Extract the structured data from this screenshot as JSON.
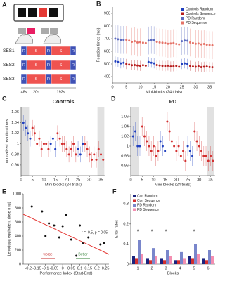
{
  "panel_a": {
    "label": "A",
    "sessions": [
      {
        "name": "SES1",
        "blocks": [
          "R",
          "S",
          "R",
          "S",
          "R"
        ]
      },
      {
        "name": "SES2",
        "blocks": [
          "R",
          "S",
          "R",
          "S",
          "R"
        ]
      },
      {
        "name": "SES3",
        "blocks": [
          "R",
          "S",
          "R",
          "S",
          "R"
        ]
      }
    ],
    "durations": [
      "48s",
      "20s",
      "192s"
    ]
  },
  "chart_data": [
    {
      "type": "scatter",
      "label": "B",
      "xlabel": "Mini-blocks (24 trials)",
      "ylabel": "Reaction times (ms)",
      "xlim": [
        0,
        37
      ],
      "xticks": [
        0,
        5,
        10,
        15,
        20,
        25,
        30,
        35
      ],
      "ylim": [
        350,
        950
      ],
      "yticks": [
        400,
        500,
        600,
        700,
        800,
        900
      ],
      "legend": "upper-right",
      "series": [
        {
          "name": "Controls Random",
          "color": "#1f3fbf",
          "error": 40,
          "x": [
            1,
            2,
            3,
            4,
            13,
            14,
            15,
            25,
            26,
            27
          ],
          "values": [
            520,
            515,
            505,
            510,
            515,
            510,
            505,
            500,
            505,
            500
          ]
        },
        {
          "name": "Controls Sequence",
          "color": "#b71c1c",
          "error": 40,
          "x": [
            5,
            6,
            7,
            8,
            9,
            10,
            11,
            12,
            16,
            17,
            18,
            19,
            20,
            21,
            22,
            23,
            24,
            28,
            29,
            30,
            31,
            32,
            33,
            34,
            35,
            36
          ],
          "values": [
            500,
            495,
            490,
            492,
            488,
            485,
            490,
            487,
            492,
            488,
            485,
            483,
            487,
            480,
            482,
            485,
            478,
            485,
            480,
            478,
            482,
            475,
            478,
            480,
            476,
            474
          ]
        },
        {
          "name": "PD Random",
          "color": "#5c6bc0",
          "error": 110,
          "x": [
            1,
            2,
            3,
            4,
            13,
            14,
            15,
            25,
            26,
            27
          ],
          "values": [
            700,
            695,
            690,
            690,
            685,
            690,
            688,
            680,
            685,
            683
          ]
        },
        {
          "name": "PD Sequence",
          "color": "#e57368",
          "error": 110,
          "x": [
            5,
            6,
            7,
            8,
            9,
            10,
            11,
            12,
            16,
            17,
            18,
            19,
            20,
            21,
            22,
            23,
            24,
            28,
            29,
            30,
            31,
            32,
            33,
            34,
            35,
            36
          ],
          "values": [
            690,
            685,
            675,
            680,
            670,
            672,
            668,
            665,
            675,
            670,
            668,
            665,
            660,
            662,
            665,
            658,
            655,
            670,
            665,
            660,
            662,
            655,
            658,
            652,
            650,
            648
          ]
        }
      ]
    },
    {
      "type": "scatter",
      "label": "C",
      "title": "Controls",
      "xlabel": "Mini-blocks (24 trials)",
      "ylabel": "normalized reaction times",
      "xlim": [
        0,
        37
      ],
      "xticks": [
        0,
        5,
        10,
        15,
        20,
        25,
        30,
        35
      ],
      "ylim": [
        0.94,
        1.07
      ],
      "yticks": [
        0.96,
        0.98,
        1,
        1.02,
        1.04,
        1.06
      ],
      "shaded": [
        [
          0,
          3.5
        ],
        [
          33.5,
          36.5
        ]
      ],
      "series": [
        {
          "color": "#1f3fbf",
          "error": 0.015,
          "x": [
            1,
            2,
            3,
            4,
            13,
            14,
            15,
            25,
            26,
            27
          ],
          "values": [
            1.04,
            1.03,
            1.02,
            1.01,
            1.0,
            1.01,
            0.99,
            0.99,
            0.98,
            1.0
          ]
        },
        {
          "color": "#d32f2f",
          "error": 0.015,
          "x": [
            5,
            6,
            7,
            8,
            9,
            10,
            11,
            12,
            16,
            17,
            18,
            19,
            20,
            21,
            22,
            23,
            24,
            28,
            29,
            30,
            31,
            32,
            33,
            34,
            35,
            36
          ],
          "values": [
            1.03,
            1.02,
            1.0,
            1.01,
            0.99,
            1.0,
            1.0,
            0.99,
            1.02,
            1.01,
            1.0,
            1.0,
            0.99,
            0.98,
            0.99,
            1.0,
            0.98,
            1.0,
            0.99,
            0.98,
            0.97,
            0.98,
            0.97,
            0.99,
            0.98,
            0.97
          ]
        }
      ]
    },
    {
      "type": "scatter",
      "label": "D",
      "title": "PD",
      "xlabel": "Mini-blocks (24 trials)",
      "xlim": [
        0,
        37
      ],
      "xticks": [
        0,
        5,
        10,
        15,
        20,
        25,
        30,
        35
      ],
      "ylim": [
        0.94,
        1.08
      ],
      "yticks": [
        0.96,
        0.98,
        1,
        1.02,
        1.04,
        1.06
      ],
      "shaded": [
        [
          0,
          3.5
        ],
        [
          33.5,
          36.5
        ]
      ],
      "series": [
        {
          "color": "#1f3fbf",
          "error": 0.02,
          "x": [
            1,
            2,
            3,
            4,
            13,
            14,
            15,
            25,
            26,
            27
          ],
          "values": [
            1.02,
            1.03,
            1.0,
            1.0,
            1.01,
            1.0,
            0.99,
            1.0,
            0.99,
            0.98
          ]
        },
        {
          "color": "#d32f2f",
          "error": 0.02,
          "x": [
            5,
            6,
            7,
            8,
            9,
            10,
            11,
            12,
            16,
            17,
            18,
            19,
            20,
            21,
            22,
            23,
            24,
            28,
            29,
            30,
            31,
            32,
            33,
            34,
            35,
            36
          ],
          "values": [
            1.04,
            1.02,
            1.01,
            1.0,
            0.99,
            1.0,
            0.98,
            0.99,
            1.05,
            1.03,
            1.01,
            1.0,
            0.99,
            1.0,
            0.98,
            0.99,
            0.97,
            1.03,
            1.01,
            1.0,
            0.99,
            0.98,
            0.98,
            0.97,
            0.98,
            0.97
          ]
        }
      ]
    },
    {
      "type": "scatter",
      "label": "E",
      "xlabel": "Performance Index (Start-End)",
      "ylabel": "Levodopa equivalent dose (mg)",
      "xlim": [
        -0.23,
        0.27
      ],
      "xticks": [
        -0.2,
        -0.15,
        -0.1,
        -0.05,
        0,
        0.05,
        0.1,
        0.15,
        0.2,
        0.25
      ],
      "ylim": [
        0,
        1000
      ],
      "yticks": [
        0,
        200,
        400,
        600,
        800,
        1000
      ],
      "annotation": "r = -0.5, p = 0.05",
      "worse_label": "worse",
      "better_label": "Better",
      "series": [
        {
          "color": "#111111",
          "x": [
            -0.18,
            -0.12,
            -0.1,
            -0.08,
            -0.05,
            -0.02,
            0,
            0.02,
            0.05,
            0.08,
            0.1,
            0.12,
            0.15,
            0.22,
            0.24
          ],
          "values": [
            820,
            750,
            400,
            580,
            550,
            380,
            540,
            700,
            350,
            120,
            550,
            300,
            380,
            280,
            300
          ]
        },
        {
          "color": "#e53935",
          "line": true,
          "x": [
            -0.23,
            0.27
          ],
          "values": [
            710,
            140
          ]
        }
      ]
    },
    {
      "type": "bar",
      "label": "F",
      "xlabel": "Blocks",
      "ylabel": "Error rates",
      "categories": [
        "1",
        "2",
        "3",
        "4",
        "5",
        "6"
      ],
      "significance": [
        "*",
        "*",
        "*",
        null,
        "*",
        null
      ],
      "ylim": [
        0,
        0.35
      ],
      "yticks": [
        0,
        0.1,
        0.2,
        0.3
      ],
      "legend": "upper-left",
      "series": [
        {
          "name": "Con Random",
          "color": "#1a237e",
          "values": [
            0.04,
            0.03,
            0.03,
            0.02,
            0.04,
            0.03
          ]
        },
        {
          "name": "Con Sequence",
          "color": "#d32f2f",
          "values": [
            0.03,
            0.02,
            0.02,
            0.02,
            0.03,
            0.02
          ]
        },
        {
          "name": "PD Random",
          "color": "#7986cb",
          "values": [
            0.12,
            0.08,
            0.07,
            0.06,
            0.1,
            0.07
          ]
        },
        {
          "name": "PD Sequence",
          "color": "#f48fb1",
          "values": [
            0.05,
            0.04,
            0.04,
            0.03,
            0.05,
            0.04
          ]
        }
      ]
    }
  ]
}
